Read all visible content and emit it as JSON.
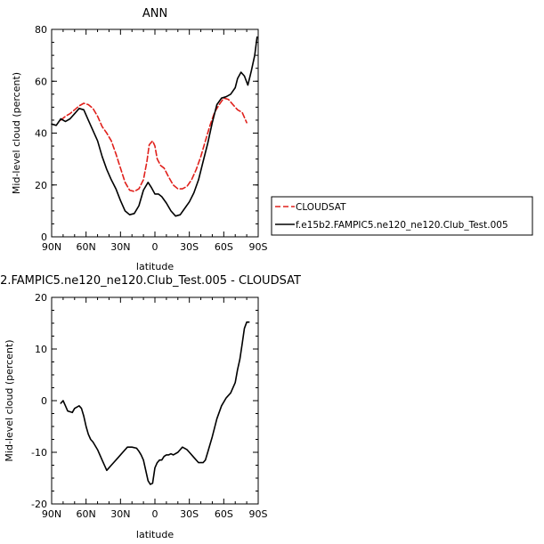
{
  "chart_data": [
    {
      "type": "line",
      "title": "ANN",
      "xlabel": "latitude",
      "ylabel": "Mid-level cloud (percent)",
      "xlim": [
        90,
        -90
      ],
      "ylim": [
        0,
        80
      ],
      "x_tick_values": [
        90,
        60,
        30,
        0,
        -30,
        -60,
        -90
      ],
      "x_tick_labels": [
        "90N",
        "60N",
        "30N",
        "0",
        "30S",
        "60S",
        "90S"
      ],
      "y_tick_values": [
        0,
        20,
        40,
        60,
        80
      ],
      "y_tick_labels": [
        "0",
        "20",
        "40",
        "60",
        "80"
      ],
      "legend_position": "right",
      "series": [
        {
          "name": "CLOUDSAT",
          "color": "#e0201b",
          "style": "dashed",
          "x": [
            82,
            78,
            74,
            70,
            66,
            62,
            58,
            54,
            50,
            46,
            42,
            38,
            34,
            30,
            26,
            22,
            18,
            14,
            10,
            7,
            5,
            2,
            0,
            -2,
            -5,
            -8,
            -12,
            -16,
            -20,
            -24,
            -28,
            -32,
            -36,
            -40,
            -44,
            -48,
            -52,
            -56,
            -60,
            -64,
            -68,
            -72,
            -76,
            -80
          ],
          "values": [
            45,
            46.5,
            47.5,
            49,
            50.5,
            51.5,
            51,
            49.5,
            46.5,
            42.5,
            40,
            37,
            32,
            26.5,
            21,
            18,
            17.5,
            18.5,
            22,
            29,
            35.5,
            37,
            35,
            30,
            27.5,
            26.5,
            23,
            20,
            18.5,
            18.5,
            19.5,
            22,
            26,
            31,
            37,
            43,
            48,
            51,
            53.5,
            53,
            51,
            49,
            48,
            44
          ]
        },
        {
          "name": "f.e15b2.FAMPIC5.ne120_ne120.Club_Test.005",
          "color": "#000000",
          "style": "solid",
          "x": [
            90,
            86,
            82,
            78,
            74,
            70,
            66,
            62,
            58,
            54,
            50,
            46,
            42,
            38,
            34,
            30,
            26,
            22,
            18,
            14,
            10,
            6,
            3,
            0,
            -3,
            -6,
            -10,
            -14,
            -18,
            -22,
            -26,
            -30,
            -34,
            -38,
            -42,
            -46,
            -50,
            -54,
            -58,
            -62,
            -66,
            -70,
            -72,
            -75,
            -78,
            -81,
            -84,
            -87,
            -89
          ],
          "values": [
            43.5,
            43,
            45.5,
            44.5,
            45.5,
            47.5,
            49.5,
            49,
            45,
            41,
            37,
            31,
            26,
            22,
            18.5,
            14,
            10,
            8.5,
            9,
            12,
            18,
            21,
            19,
            16.5,
            16.5,
            15.5,
            13,
            10,
            8,
            8.5,
            11,
            13.5,
            17,
            22,
            29,
            36,
            44,
            51,
            53.5,
            54,
            55,
            57.5,
            61,
            63.5,
            62,
            58.5,
            64,
            70,
            77
          ]
        }
      ]
    },
    {
      "type": "line",
      "title": "2.FAMPIC5.ne120_ne120.Club_Test.005 - CLOUDSAT",
      "xlabel": "latitude",
      "ylabel": "Mid-level cloud (percent)",
      "xlim": [
        90,
        -90
      ],
      "ylim": [
        -20,
        20
      ],
      "x_tick_values": [
        90,
        60,
        30,
        0,
        -30,
        -60,
        -90
      ],
      "x_tick_labels": [
        "90N",
        "60N",
        "30N",
        "0",
        "30S",
        "60S",
        "90S"
      ],
      "y_tick_values": [
        -20,
        -10,
        0,
        10,
        20
      ],
      "y_tick_labels": [
        "-20",
        "-10",
        "0",
        "10",
        "20"
      ],
      "series": [
        {
          "color": "#000000",
          "style": "solid",
          "x": [
            82,
            80,
            78,
            76,
            72,
            70,
            66,
            64,
            62,
            60,
            58,
            56,
            54,
            50,
            46,
            42,
            38,
            36,
            32,
            28,
            24,
            20,
            16,
            14,
            12,
            10,
            8,
            6,
            4,
            2,
            0,
            -2,
            -4,
            -6,
            -8,
            -10,
            -12,
            -14,
            -16,
            -20,
            -24,
            -28,
            -30,
            -34,
            -38,
            -42,
            -44,
            -46,
            -50,
            -54,
            -58,
            -62,
            -66,
            -70,
            -72,
            -74,
            -76,
            -78,
            -80,
            -82
          ],
          "values": [
            -0.5,
            0,
            -1,
            -2,
            -2.3,
            -1.5,
            -1,
            -1.5,
            -3,
            -5,
            -6.5,
            -7.5,
            -8,
            -9.5,
            -11.5,
            -13.5,
            -12.5,
            -12,
            -11,
            -10,
            -9,
            -9,
            -9.2,
            -9.8,
            -10.5,
            -11.5,
            -13.5,
            -15.5,
            -16.2,
            -16,
            -13,
            -12,
            -11.5,
            -11.5,
            -10.8,
            -10.5,
            -10.5,
            -10.3,
            -10.5,
            -10,
            -9,
            -9.5,
            -10,
            -11,
            -12,
            -12,
            -11.5,
            -10,
            -7,
            -3.5,
            -1,
            0.5,
            1.5,
            3.5,
            6,
            8,
            11,
            14,
            15.2,
            15.2
          ]
        }
      ]
    }
  ]
}
